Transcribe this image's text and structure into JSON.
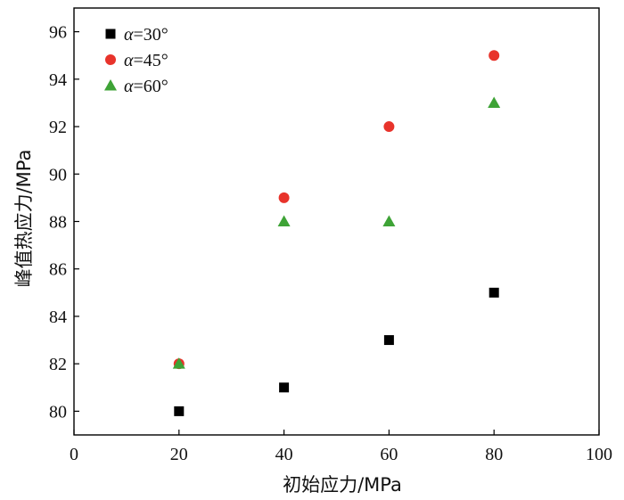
{
  "chart_data": {
    "type": "scatter",
    "xlabel": "初始应力/MPa",
    "ylabel": "峰值热应力/MPa",
    "xlim": [
      0,
      100
    ],
    "ylim": [
      79,
      97
    ],
    "xticks": [
      0,
      20,
      40,
      60,
      80,
      100
    ],
    "yticks": [
      80,
      82,
      84,
      86,
      88,
      90,
      92,
      94,
      96
    ],
    "x_tick_labels": [
      "0",
      "20",
      "40",
      "60",
      "80",
      "100"
    ],
    "y_tick_labels": [
      "80",
      "82",
      "84",
      "86",
      "88",
      "90",
      "92",
      "94",
      "96"
    ],
    "grid": false,
    "legend_position": "top-left",
    "series": [
      {
        "name": "α=30°",
        "marker": "square",
        "color": "#000000",
        "x": [
          20,
          40,
          60,
          80
        ],
        "y": [
          80,
          81,
          83,
          85
        ]
      },
      {
        "name": "α=45°",
        "marker": "circle",
        "color": "#e8332b",
        "x": [
          20,
          40,
          60,
          80
        ],
        "y": [
          82,
          89,
          92,
          95
        ]
      },
      {
        "name": "α=60°",
        "marker": "triangle",
        "color": "#3ea336",
        "x": [
          20,
          40,
          60,
          80
        ],
        "y": [
          82,
          88,
          88,
          93
        ]
      }
    ]
  }
}
